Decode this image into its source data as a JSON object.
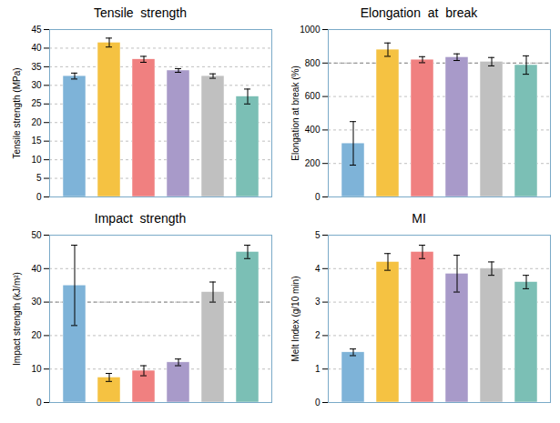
{
  "chart_data": [
    {
      "type": "bar",
      "title": "Tensile  strength",
      "ylabel": "Tensile strength (MPa)",
      "categories": [
        null,
        null,
        null,
        null,
        null,
        null
      ],
      "values": [
        32.5,
        41.5,
        37.0,
        34.0,
        32.5,
        27.0
      ],
      "errors": [
        0.8,
        1.2,
        0.8,
        0.5,
        0.6,
        2.0
      ],
      "colors": [
        "#7eb3d8",
        "#f5c242",
        "#f08080",
        "#a89ac9",
        "#c0c0c0",
        "#7bbfb5"
      ],
      "ylim": [
        0,
        45
      ],
      "yticks": [
        0,
        5,
        10,
        15,
        20,
        25,
        30,
        35,
        40,
        45
      ],
      "grid": true,
      "tick_labels": "y"
    },
    {
      "type": "bar",
      "title": "Elongation  at  break",
      "ylabel": "Elongation at break (%)",
      "categories": [
        null,
        null,
        null,
        null,
        null,
        null
      ],
      "values": [
        320,
        880,
        820,
        835,
        808,
        788
      ],
      "errors": [
        130,
        40,
        18,
        20,
        25,
        55
      ],
      "colors": [
        "#7eb3d8",
        "#f5c242",
        "#f08080",
        "#a89ac9",
        "#c0c0c0",
        "#7bbfb5"
      ],
      "hline": 800,
      "ylim": [
        0,
        1000
      ],
      "yticks": [
        0,
        200,
        400,
        600,
        800,
        1000
      ],
      "grid": true,
      "tick_labels": "y"
    },
    {
      "type": "bar",
      "title": "Impact  strength",
      "ylabel": "Impact strength (kJ/m²)",
      "categories": [
        null,
        null,
        null,
        null,
        null,
        null
      ],
      "values": [
        35.0,
        7.5,
        9.5,
        12.0,
        33.0,
        45.0
      ],
      "errors": [
        12.0,
        1.2,
        1.5,
        1.0,
        3.0,
        2.0
      ],
      "colors": [
        "#7eb3d8",
        "#f5c242",
        "#f08080",
        "#a89ac9",
        "#c0c0c0",
        "#7bbfb5"
      ],
      "hline": 30,
      "ylim": [
        0,
        50
      ],
      "yticks": [
        0,
        10,
        20,
        30,
        40,
        50
      ],
      "grid": true,
      "tick_labels": "y"
    },
    {
      "type": "bar",
      "title": "MI",
      "ylabel": "Melt Index (g/10 min)",
      "categories": [
        null,
        null,
        null,
        null,
        null,
        null
      ],
      "values": [
        1.5,
        4.2,
        4.5,
        3.85,
        4.0,
        3.6
      ],
      "errors": [
        0.1,
        0.25,
        0.2,
        0.55,
        0.2,
        0.2
      ],
      "colors": [
        "#7eb3d8",
        "#f5c242",
        "#f08080",
        "#a89ac9",
        "#c0c0c0",
        "#7bbfb5"
      ],
      "ylim": [
        0,
        5
      ],
      "yticks": [
        0,
        1,
        2,
        3,
        4,
        5
      ],
      "grid": true,
      "tick_labels": "y"
    }
  ]
}
